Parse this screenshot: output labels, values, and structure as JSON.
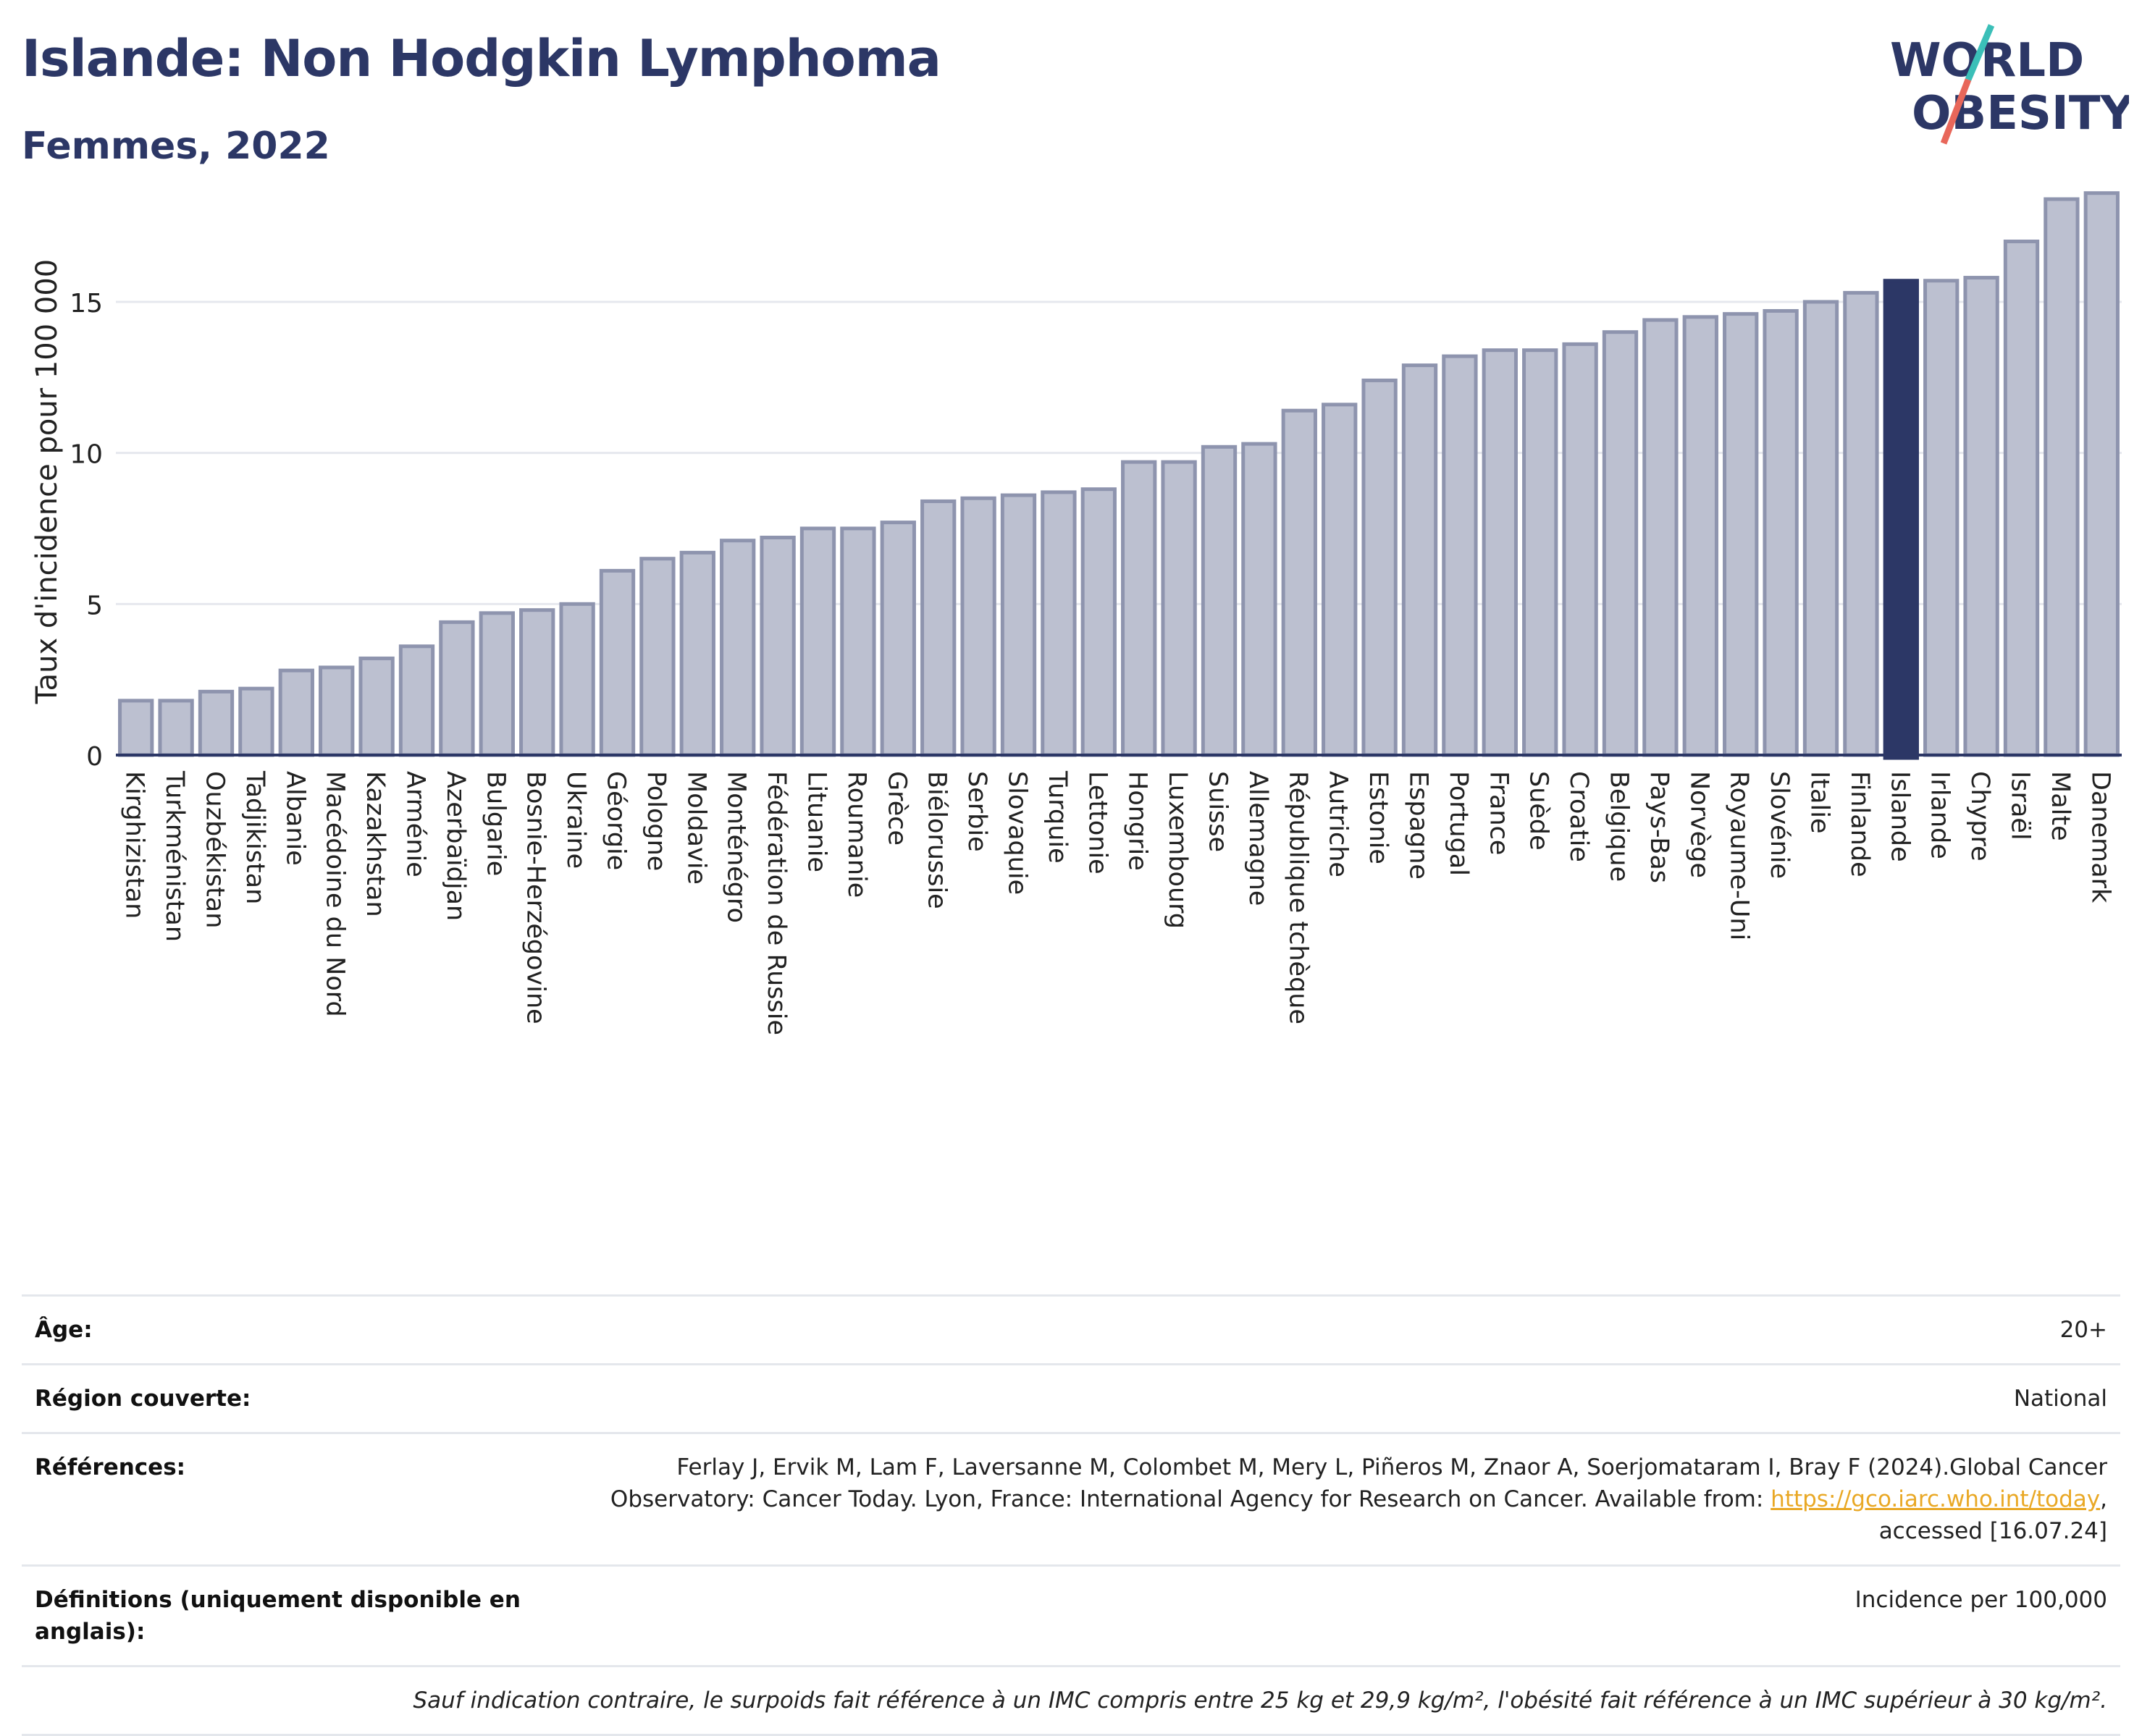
{
  "header": {
    "title": "Islande: Non Hodgkin Lymphoma",
    "subtitle": "Femmes, 2022"
  },
  "logo": {
    "line1": "WORLD",
    "line2": "OBESITY",
    "colors": {
      "text": "#2c3766",
      "slash_teal": "#3bbfb8",
      "slash_coral": "#e8675a"
    }
  },
  "colors": {
    "bar": "#bcc0d0",
    "bar_edge": "#8e94ae",
    "highlight": "#2c3766",
    "grid": "#e6e8ee",
    "axis": "#2c3766"
  },
  "chart_data": {
    "type": "bar",
    "title": "Islande: Non Hodgkin Lymphoma",
    "subtitle": "Femmes, 2022",
    "ylabel": "Taux d'incidence pour 100 000",
    "xlabel": "",
    "ylim": [
      0,
      19
    ],
    "yticks": [
      0,
      5,
      10,
      15
    ],
    "grid": true,
    "highlight": "Islande",
    "categories": [
      "Kirghizistan",
      "Turkménistan",
      "Ouzbékistan",
      "Tadjikistan",
      "Albanie",
      "Macédoine du Nord",
      "Kazakhstan",
      "Arménie",
      "Azerbaïdjan",
      "Bulgarie",
      "Bosnie-Herzégovine",
      "Ukraine",
      "Géorgie",
      "Pologne",
      "Moldavie",
      "Monténégro",
      "Fédération de Russie",
      "Lituanie",
      "Roumanie",
      "Grèce",
      "Biélorussie",
      "Serbie",
      "Slovaquie",
      "Turquie",
      "Lettonie",
      "Hongrie",
      "Luxembourg",
      "Suisse",
      "Allemagne",
      "République tchèque",
      "Autriche",
      "Estonie",
      "Espagne",
      "Portugal",
      "France",
      "Suède",
      "Croatie",
      "Belgique",
      "Pays-Bas",
      "Norvège",
      "Royaume-Uni",
      "Slovénie",
      "Italie",
      "Finlande",
      "Islande",
      "Irlande",
      "Chypre",
      "Israël",
      "Malte",
      "Danemark"
    ],
    "values": [
      1.8,
      1.8,
      2.1,
      2.2,
      2.8,
      2.9,
      3.2,
      3.6,
      4.4,
      4.7,
      4.8,
      5.0,
      6.1,
      6.5,
      6.7,
      7.1,
      7.2,
      7.5,
      7.5,
      7.7,
      8.4,
      8.5,
      8.6,
      8.7,
      8.8,
      9.7,
      9.7,
      10.2,
      10.3,
      11.4,
      11.6,
      12.4,
      12.9,
      13.2,
      13.4,
      13.4,
      13.6,
      14.0,
      14.4,
      14.5,
      14.6,
      14.7,
      15.0,
      15.3,
      15.7,
      15.7,
      15.8,
      17.0,
      18.4,
      18.6
    ]
  },
  "meta": {
    "age_label": "Âge:",
    "age_value": "20+",
    "region_label": "Région couverte:",
    "region_value": "National",
    "ref_label": "Références:",
    "ref_text_1": "Ferlay J, Ervik M, Lam F, Laversanne M, Colombet M, Mery L, Piñeros M, Znaor A, Soerjomataram I, Bray F (2024).Global Cancer",
    "ref_text_2": "Observatory: Cancer Today. Lyon, France: International Agency for Research on Cancer. Available from: ",
    "ref_link": "https://gco.iarc.who.int/today",
    "ref_text_3": ",",
    "ref_text_4": "accessed [16.07.24]",
    "def_label": "Définitions (uniquement disponible en anglais):",
    "def_value": "Incidence per 100,000",
    "note": "Sauf indication contraire, le surpoids fait référence à un IMC compris entre 25 kg et 29,9 kg/m², l'obésité fait référence à un IMC supérieur à 30 kg/m²."
  }
}
